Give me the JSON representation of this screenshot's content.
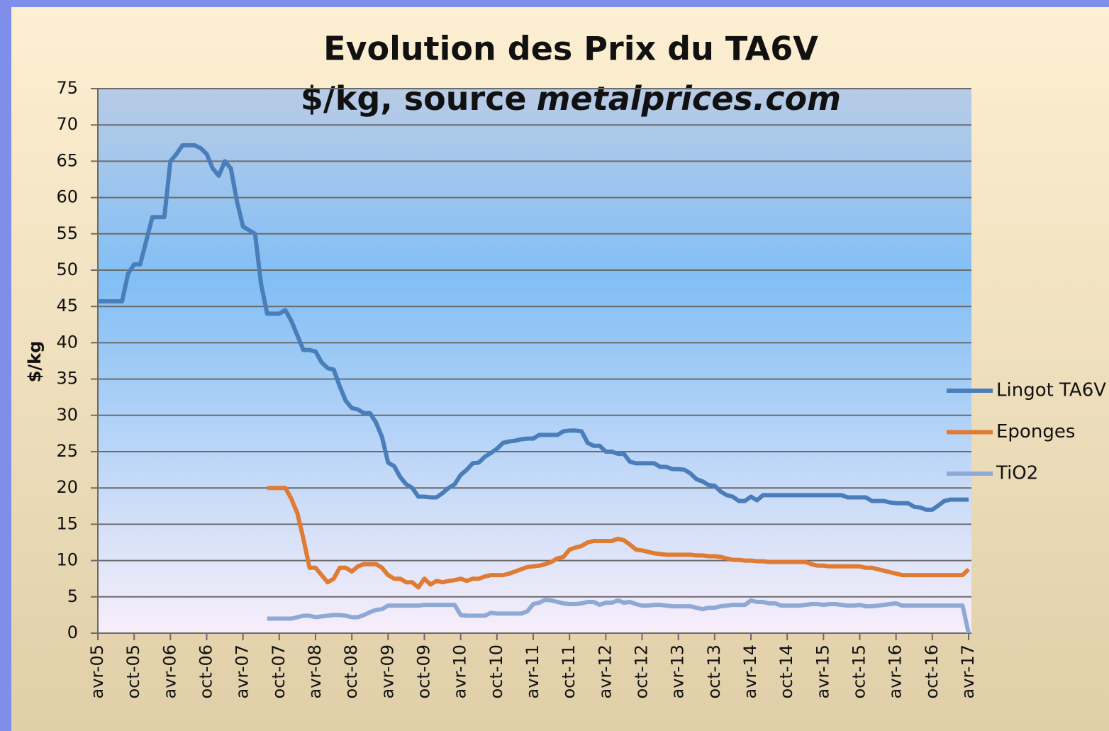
{
  "chart_data": {
    "type": "line",
    "title": "Evolution des Prix du TA6V",
    "subtitle_parts": [
      "$/kg, source",
      "metalprices.com"
    ],
    "y_label": "$/kg",
    "ylim": [
      0,
      75
    ],
    "yticks": [
      0,
      5,
      10,
      15,
      20,
      25,
      30,
      35,
      40,
      45,
      50,
      55,
      60,
      65,
      70,
      75
    ],
    "grid": true,
    "legend": "right",
    "categories": [
      "avr-05",
      null,
      null,
      null,
      null,
      null,
      "oct-05",
      null,
      null,
      null,
      null,
      null,
      "avr-06",
      null,
      null,
      null,
      null,
      null,
      "oct-06",
      null,
      null,
      null,
      null,
      null,
      "avr-07",
      null,
      null,
      null,
      null,
      null,
      "oct-07",
      null,
      null,
      null,
      null,
      null,
      "avr-08",
      null,
      null,
      null,
      null,
      null,
      "oct-08",
      null,
      null,
      null,
      null,
      null,
      "avr-09",
      null,
      null,
      null,
      null,
      null,
      "oct-09",
      null,
      null,
      null,
      null,
      null,
      "avr-10",
      null,
      null,
      null,
      null,
      null,
      "oct-10",
      null,
      null,
      null,
      null,
      null,
      "avr-11",
      null,
      null,
      null,
      null,
      null,
      "oct-11",
      null,
      null,
      null,
      null,
      null,
      "avr-12",
      null,
      null,
      null,
      null,
      null,
      "oct-12",
      null,
      null,
      null,
      null,
      null,
      "avr-13",
      null,
      null,
      null,
      null,
      null,
      "oct-13",
      null,
      null,
      null,
      null,
      null,
      "avr-14",
      null,
      null,
      null,
      null,
      null,
      "oct-14",
      null,
      null,
      null,
      null,
      null,
      "avr-15",
      null,
      null,
      null,
      null,
      null,
      "oct-15",
      null,
      null,
      null,
      null,
      null,
      "avr-16",
      null,
      null,
      null,
      null,
      null,
      "oct-16",
      null,
      null,
      null,
      null,
      null,
      "avr-17"
    ],
    "series": [
      {
        "name": "Lingot TA6V",
        "color": "#4a7ebb",
        "values": [
          45.7,
          45.7,
          45.7,
          45.7,
          45.7,
          49.5,
          50.8,
          50.8,
          54,
          57.3,
          57.3,
          57.3,
          65,
          66,
          67.2,
          67.2,
          67.2,
          66.8,
          66,
          64,
          63,
          65,
          64,
          59.5,
          56,
          55.5,
          55,
          48,
          44,
          44,
          44,
          44.5,
          43,
          41,
          39,
          39,
          38.8,
          37.3,
          36.5,
          36.3,
          34,
          32,
          31,
          30.8,
          30.3,
          30.3,
          29,
          27,
          23.5,
          23,
          21.5,
          20.5,
          20,
          18.8,
          18.8,
          18.7,
          18.7,
          19.3,
          20,
          20.5,
          21.8,
          22.5,
          23.4,
          23.5,
          24.3,
          24.8,
          25.4,
          26.2,
          26.4,
          26.5,
          26.7,
          26.8,
          26.8,
          27.3,
          27.3,
          27.3,
          27.3,
          27.8,
          27.9,
          27.9,
          27.8,
          26.2,
          25.8,
          25.8,
          25,
          25,
          24.7,
          24.7,
          23.6,
          23.4,
          23.4,
          23.4,
          23.4,
          22.9,
          22.9,
          22.6,
          22.6,
          22.5,
          22,
          21.2,
          20.9,
          20.4,
          20.3,
          19.5,
          19,
          18.8,
          18.2,
          18.2,
          18.8,
          18.3,
          19,
          19,
          19,
          19,
          19,
          19,
          19,
          19,
          19,
          19,
          19,
          19,
          19,
          19,
          18.7,
          18.7,
          18.7,
          18.7,
          18.2,
          18.2,
          18.2,
          18,
          17.9,
          17.9,
          17.9,
          17.4,
          17.3,
          17,
          17,
          17.6,
          18.2,
          18.4,
          18.4,
          18.4,
          18.4
        ]
      },
      {
        "name": "Eponges",
        "color": "#e07b33",
        "values": [
          null,
          null,
          null,
          null,
          null,
          null,
          null,
          null,
          null,
          null,
          null,
          null,
          null,
          null,
          null,
          null,
          null,
          null,
          null,
          null,
          null,
          null,
          null,
          null,
          null,
          null,
          null,
          null,
          20,
          20,
          20,
          20,
          18.5,
          16.5,
          13,
          9,
          9,
          8,
          7,
          7.5,
          9,
          9,
          8.5,
          9.2,
          9.5,
          9.5,
          9.5,
          9,
          8,
          7.5,
          7.5,
          7,
          7,
          6.3,
          7.5,
          6.7,
          7.2,
          7,
          7.2,
          7.3,
          7.5,
          7.2,
          7.5,
          7.5,
          7.8,
          8,
          8,
          8,
          8.2,
          8.5,
          8.8,
          9.1,
          9.2,
          9.3,
          9.5,
          9.8,
          10.3,
          10.5,
          11.5,
          11.8,
          12,
          12.5,
          12.7,
          12.7,
          12.7,
          12.7,
          13,
          12.8,
          12.2,
          11.5,
          11.4,
          11.2,
          11,
          10.9,
          10.8,
          10.8,
          10.8,
          10.8,
          10.8,
          10.7,
          10.7,
          10.6,
          10.6,
          10.5,
          10.3,
          10.1,
          10.1,
          10,
          10,
          9.9,
          9.9,
          9.8,
          9.8,
          9.8,
          9.8,
          9.8,
          9.8,
          9.8,
          9.5,
          9.3,
          9.3,
          9.2,
          9.2,
          9.2,
          9.2,
          9.2,
          9.2,
          9,
          9,
          8.8,
          8.6,
          8.4,
          8.2,
          8,
          8,
          8,
          8,
          8,
          8,
          8,
          8,
          8,
          8,
          8,
          8.8
        ]
      },
      {
        "name": "TiO2",
        "color": "#8fa9d6",
        "values": [
          null,
          null,
          null,
          null,
          null,
          null,
          null,
          null,
          null,
          null,
          null,
          null,
          null,
          null,
          null,
          null,
          null,
          null,
          null,
          null,
          null,
          null,
          null,
          null,
          null,
          null,
          null,
          null,
          2,
          2,
          2,
          2,
          2,
          2.2,
          2.4,
          2.4,
          2.2,
          2.3,
          2.4,
          2.5,
          2.5,
          2.4,
          2.2,
          2.2,
          2.5,
          2.9,
          3.2,
          3.3,
          3.8,
          3.8,
          3.8,
          3.8,
          3.8,
          3.8,
          3.9,
          3.9,
          3.9,
          3.9,
          3.9,
          3.9,
          2.5,
          2.4,
          2.4,
          2.4,
          2.4,
          2.8,
          2.7,
          2.7,
          2.7,
          2.7,
          2.7,
          3,
          4,
          4.2,
          4.6,
          4.5,
          4.3,
          4.1,
          4,
          4,
          4.1,
          4.3,
          4.3,
          3.9,
          4.2,
          4.2,
          4.5,
          4.2,
          4.3,
          4,
          3.8,
          3.8,
          3.9,
          3.9,
          3.8,
          3.7,
          3.7,
          3.7,
          3.7,
          3.5,
          3.3,
          3.5,
          3.5,
          3.7,
          3.8,
          3.9,
          3.9,
          3.9,
          4.5,
          4.3,
          4.3,
          4.1,
          4.1,
          3.8,
          3.8,
          3.8,
          3.8,
          3.9,
          4,
          4,
          3.9,
          4,
          4,
          3.9,
          3.8,
          3.8,
          3.9,
          3.7,
          3.7,
          3.8,
          3.9,
          4,
          4.1,
          3.8,
          3.8,
          3.8,
          3.8,
          3.8,
          3.8,
          3.8,
          3.8,
          3.8,
          3.8,
          3.8,
          0
        ]
      }
    ]
  }
}
